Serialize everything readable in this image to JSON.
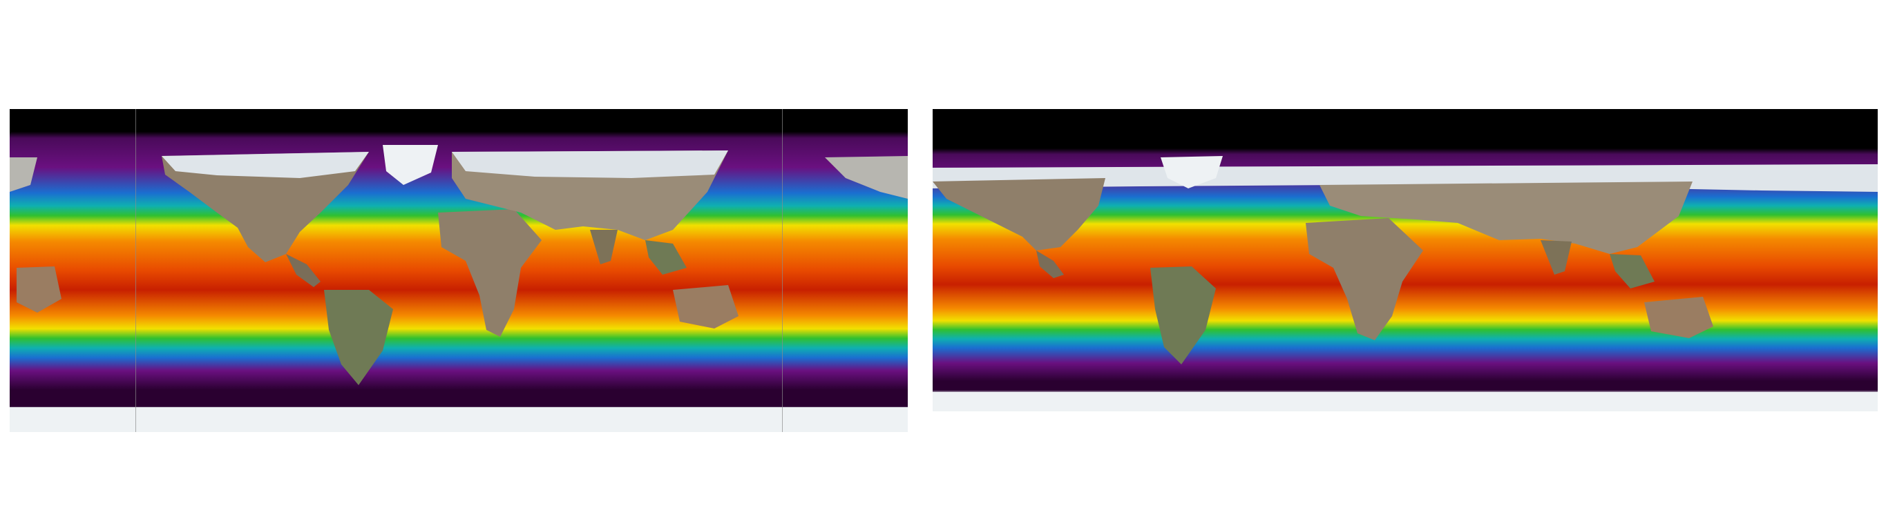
{
  "figure": {
    "panels": [
      {
        "id": "map-left",
        "name": "sst-map-pacific-centered",
        "projection": "equirectangular"
      },
      {
        "id": "map-right",
        "name": "sst-map-atlantic-centered",
        "projection": "equirectangular"
      }
    ],
    "colors": {
      "polar": "#2a0030",
      "cold": "#6a1080",
      "cool_blue": "#1a6fd0",
      "teal": "#0fb0b0",
      "green": "#30c030",
      "yellow": "#f2e000",
      "orange": "#f58a00",
      "warm": "#e84a00",
      "hot": "#c82000",
      "land": "#8f7f6a",
      "ice": "#e9eef1",
      "no_data": "#000000"
    }
  }
}
